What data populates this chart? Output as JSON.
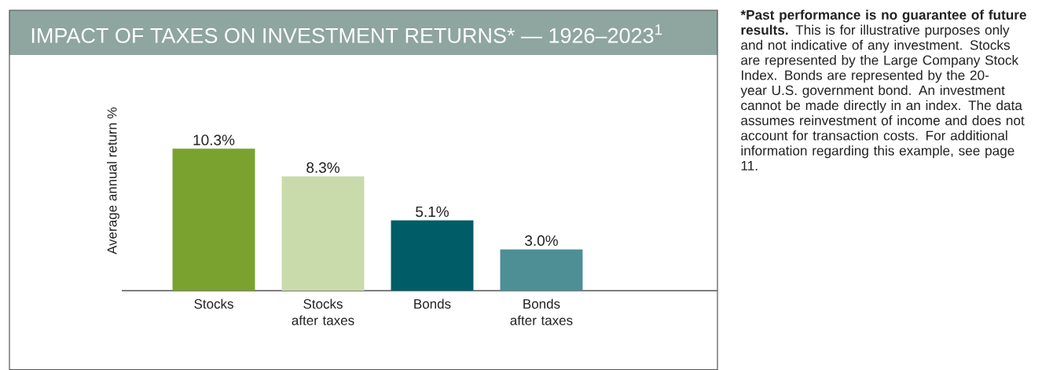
{
  "chart_data": {
    "type": "bar",
    "title": "IMPACT OF TAXES ON INVESTMENT RETURNS* — 1926–2023$^{1}$",
    "ylabel": "Average annual return %",
    "categories": [
      "Stocks",
      "Stocks after taxes",
      "Bonds",
      "Bonds after taxes"
    ],
    "values": [
      10.3,
      8.3,
      5.1,
      3.0
    ],
    "colors": [
      "#79a22f",
      "#c9dbab",
      "#005c66",
      "#4d8f95"
    ],
    "value_labels": [
      "10.3%",
      "8.3%",
      "5.1%",
      "3.0%"
    ],
    "annotations": [
      "*Past performance is no guarantee of future results.",
      "This is for illustrative purposes only and not indicative of any investment. Stocks are represented by the Large Company Stock Index. Bonds are represented by the 20-year U.S. government bond. An investment cannot be made directly in an index. The data assumes reinvestment of income and does not account for transaction costs. For additional information regarding this example, see page 11."
    ]
  }
}
